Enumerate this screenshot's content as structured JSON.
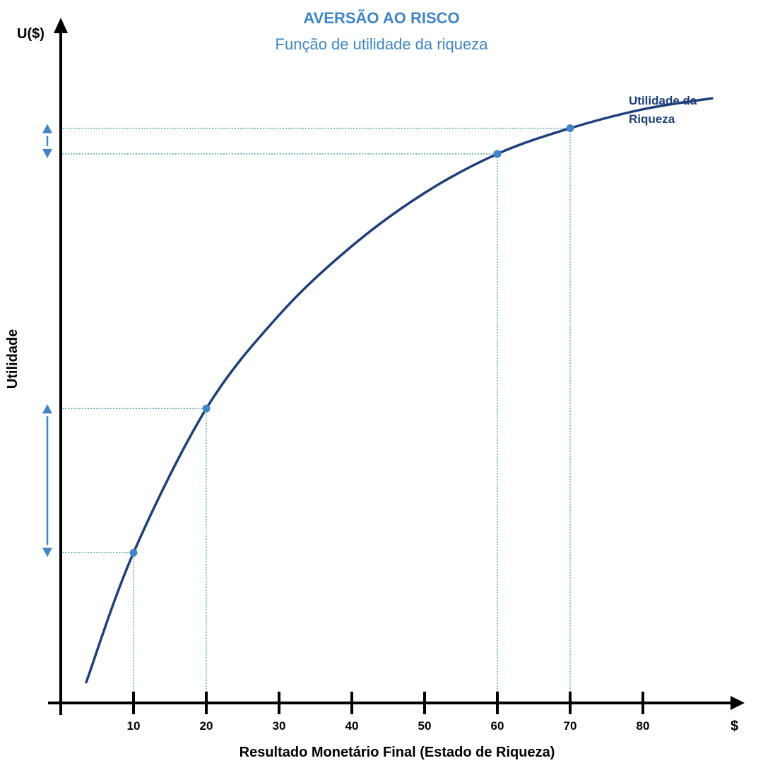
{
  "chart_data": {
    "type": "line",
    "title": "AVERSÃO AO RISCO",
    "subtitle": "Função de utilidade da riqueza",
    "xlabel": "Resultado Monetário Final (Estado de Riqueza)",
    "ylabel": "Utilidade",
    "x_axis_end_label": "$",
    "y_axis_end_label": "U($)",
    "xlim": [
      0,
      92
    ],
    "ylim": [
      0,
      100
    ],
    "x_ticks": [
      10,
      20,
      30,
      40,
      50,
      60,
      70,
      80
    ],
    "x_tick_labels": [
      "10",
      "20",
      "30",
      "40",
      "50",
      "60",
      "70",
      "80"
    ],
    "grid": false,
    "series": [
      {
        "name": "Utilidade da Riqueza",
        "color": "#1e3f7a",
        "x": [
          3.5,
          10,
          20,
          30,
          40,
          50,
          60,
          70,
          80,
          89.5
        ],
        "y": [
          3.4,
          24.6,
          48.2,
          63.5,
          74.8,
          83.5,
          89.9,
          94.1,
          97.2,
          99.0
        ]
      }
    ],
    "highlight_points": [
      {
        "x": 10,
        "y": 24.6
      },
      {
        "x": 20,
        "y": 48.2
      },
      {
        "x": 60,
        "y": 89.9
      },
      {
        "x": 70,
        "y": 94.1
      }
    ],
    "utility_gap_arrows": [
      {
        "from": 24.6,
        "to": 48.2
      },
      {
        "from": 89.9,
        "to": 94.1
      }
    ],
    "colors": {
      "title": "#3e86c6",
      "curve": "#1e3f7a",
      "points": "#3e86c6",
      "guides": "#4a9cae",
      "arrows": "#3e86c6",
      "axes": "#000000"
    }
  }
}
